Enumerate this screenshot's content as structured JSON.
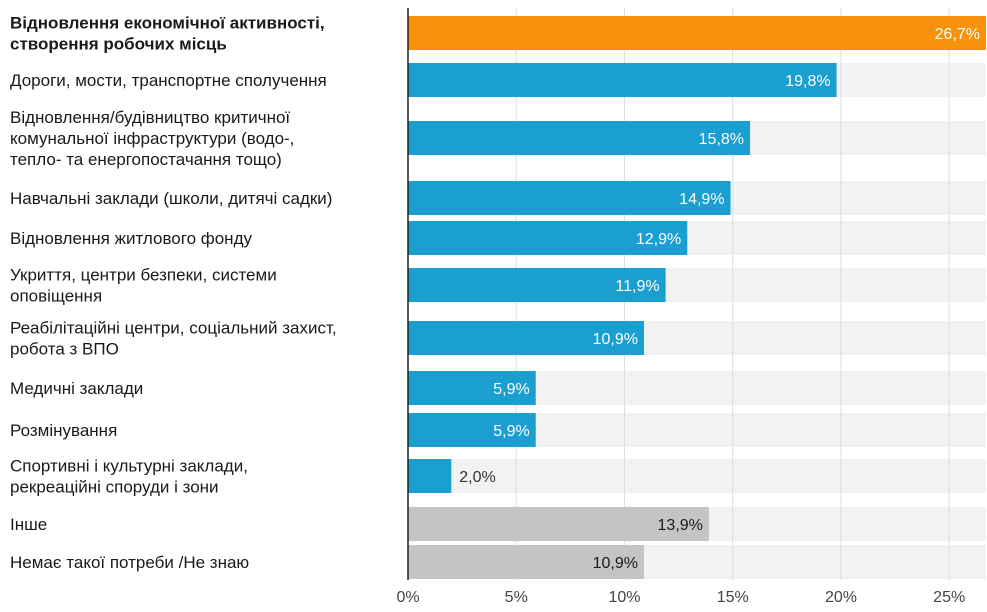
{
  "chart_data": {
    "type": "bar",
    "orientation": "horizontal",
    "categories": [
      [
        "Відновлення економічної активності,",
        "створення робочих місць"
      ],
      [
        "Дороги, мости, транспортне сполучення"
      ],
      [
        "Відновлення/будівництво критичної",
        "комунальної інфраструктури (водо-,",
        "тепло- та енергопостачання тощо)"
      ],
      [
        "Навчальні заклади (школи, дитячі садки)"
      ],
      [
        "Відновлення житлового фонду"
      ],
      [
        "Укриття, центри безпеки, системи",
        "оповіщення"
      ],
      [
        "Реабілітаційні центри, соціальний захист,",
        "робота з ВПО"
      ],
      [
        "Медичні заклади"
      ],
      [
        "Розмінування"
      ],
      [
        "Спортивні і культурні заклади,",
        "рекреаційні споруди і зони"
      ],
      [
        "Інше"
      ],
      [
        "Немає такої потреби /Не знаю"
      ]
    ],
    "values": [
      26.7,
      19.8,
      15.8,
      14.9,
      12.9,
      11.9,
      10.9,
      5.9,
      5.9,
      2.0,
      13.9,
      10.9
    ],
    "value_labels": [
      "26,7%",
      "19,8%",
      "15,8%",
      "14,9%",
      "12,9%",
      "11,9%",
      "10,9%",
      "5,9%",
      "5,9%",
      "2,0%",
      "13,9%",
      "10,9%"
    ],
    "bar_colors": [
      "#f7920a",
      "#1a9fd0",
      "#1a9fd0",
      "#1a9fd0",
      "#1a9fd0",
      "#1a9fd0",
      "#1a9fd0",
      "#1a9fd0",
      "#1a9fd0",
      "#1a9fd0",
      "#c4c4c4",
      "#c4c4c4"
    ],
    "highlight_index": 0,
    "x_ticks": [
      0,
      5,
      10,
      15,
      20,
      25
    ],
    "x_tick_labels": [
      "0%",
      "5%",
      "10%",
      "15%",
      "20%",
      "25%"
    ],
    "xlim": [
      0,
      26.7
    ],
    "title": "",
    "xlabel": "",
    "ylabel": "",
    "grid": "vertical",
    "colors": {
      "track": "#f2f2f2",
      "grid": "#dddddd",
      "axis": "#222222",
      "label_inside": "#ffffff",
      "label_outside": "#333333",
      "label_gray_bar": "#1a1a1a"
    }
  }
}
